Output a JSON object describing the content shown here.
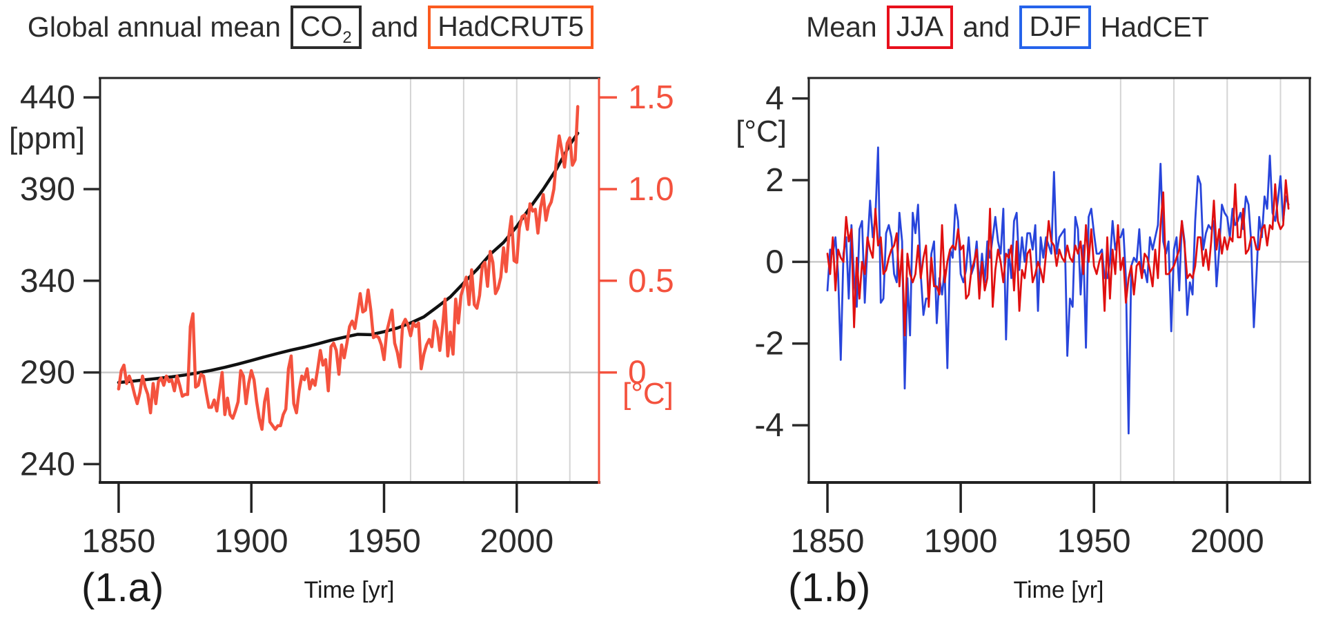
{
  "figure": {
    "titles": {
      "a": {
        "prefix": "Global annual mean",
        "box1": "CO",
        "box1_sub": "2",
        "mid": "and",
        "box2": "HadCRUT5"
      },
      "b": {
        "prefix": "Mean",
        "box1": "JJA",
        "mid": "and",
        "box2": "DJF",
        "suffix": "HadCET"
      }
    },
    "captions": {
      "a": "(1.a)",
      "b": "(1.b)",
      "xlabel": "Time [yr]"
    }
  },
  "colors": {
    "co2_line": "#111111",
    "co2_box": "#2b2b2b",
    "hadcrut_line": "#f4523e",
    "hadcrut_box": "#fb5a1f",
    "right_axis": "#f4523e",
    "jja_line": "#e01010",
    "jja_box": "#e8101c",
    "djf_line": "#2845db",
    "djf_box": "#2563eb",
    "grid": "#d4d4d4",
    "zero_line": "#c9c9c9",
    "axis": "#222222",
    "text": "#2b2b2b"
  },
  "chart_data": [
    {
      "id": "a",
      "type": "line",
      "title": "Global annual mean CO2 and HadCRUT5",
      "xlabel": "Time [yr]",
      "x_range": [
        1843,
        2031
      ],
      "x_ticks": [
        1850,
        1900,
        1950,
        2000
      ],
      "x_tick_labels": [
        "1850",
        "1900",
        "1950",
        "2000"
      ],
      "grid_years": [
        1960,
        1980,
        2000,
        2020
      ],
      "zero_axis": "right",
      "zero_value": 0,
      "axes": {
        "left": {
          "unit": "[ppm]",
          "ticks": [
            240,
            290,
            340,
            390,
            440
          ],
          "tick_labels": [
            "240",
            "290",
            "340",
            "390",
            "440"
          ],
          "range": [
            230,
            450.6
          ],
          "color": "#2b2b2b"
        },
        "right": {
          "unit": "[°C]",
          "ticks": [
            0,
            0.5,
            1.0,
            1.5
          ],
          "tick_labels": [
            "0",
            "0.5",
            "1.0",
            "1.5"
          ],
          "range": [
            -0.6,
            1.606
          ],
          "color": "#f4523e"
        }
      },
      "series": [
        {
          "name": "CO2",
          "legend": "CO2",
          "axis": "left",
          "color": "#111111",
          "width": 4.5,
          "points": [
            [
              1850,
              284.5
            ],
            [
              1855,
              285.2
            ],
            [
              1860,
              286.0
            ],
            [
              1865,
              286.8
            ],
            [
              1870,
              287.6
            ],
            [
              1875,
              288.6
            ],
            [
              1880,
              289.8
            ],
            [
              1885,
              291.2
            ],
            [
              1890,
              292.8
            ],
            [
              1895,
              294.6
            ],
            [
              1900,
              296.5
            ],
            [
              1905,
              298.5
            ],
            [
              1910,
              300.4
            ],
            [
              1915,
              302.2
            ],
            [
              1920,
              303.8
            ],
            [
              1925,
              305.6
            ],
            [
              1930,
              307.6
            ],
            [
              1935,
              309.2
            ],
            [
              1940,
              310.8
            ],
            [
              1945,
              310.6
            ],
            [
              1950,
              312.2
            ],
            [
              1955,
              314.2
            ],
            [
              1960,
              317.0
            ],
            [
              1965,
              320.3
            ],
            [
              1970,
              325.7
            ],
            [
              1975,
              331.2
            ],
            [
              1980,
              338.8
            ],
            [
              1985,
              346.1
            ],
            [
              1990,
              354.4
            ],
            [
              1995,
              360.9
            ],
            [
              2000,
              369.6
            ],
            [
              2005,
              379.9
            ],
            [
              2010,
              389.9
            ],
            [
              2015,
              401.0
            ],
            [
              2020,
              414.2
            ],
            [
              2023,
              420.5
            ]
          ]
        },
        {
          "name": "HadCRUT5",
          "legend": "HadCRUT5",
          "axis": "right",
          "color": "#f4523e",
          "width": 4.5,
          "start_year": 1850,
          "values": [
            -0.09,
            0.01,
            0.04,
            -0.06,
            -0.02,
            -0.06,
            -0.12,
            -0.17,
            -0.11,
            -0.02,
            -0.08,
            -0.12,
            -0.22,
            -0.06,
            -0.17,
            -0.05,
            -0.03,
            -0.07,
            -0.02,
            -0.05,
            -0.04,
            -0.1,
            -0.02,
            -0.07,
            -0.13,
            -0.12,
            -0.12,
            0.25,
            0.32,
            -0.08,
            -0.07,
            -0.01,
            -0.02,
            -0.11,
            -0.19,
            -0.19,
            -0.15,
            -0.21,
            -0.1,
            0.0,
            -0.23,
            -0.14,
            -0.23,
            -0.25,
            -0.21,
            -0.16,
            0.01,
            -0.02,
            -0.17,
            -0.06,
            0.01,
            -0.04,
            -0.16,
            -0.25,
            -0.31,
            -0.16,
            -0.09,
            -0.27,
            -0.29,
            -0.31,
            -0.29,
            -0.29,
            -0.23,
            -0.2,
            0.02,
            0.09,
            -0.17,
            -0.22,
            -0.1,
            -0.02,
            -0.04,
            0.02,
            -0.09,
            -0.04,
            -0.07,
            0.02,
            0.12,
            0.04,
            0.07,
            -0.1,
            0.14,
            0.16,
            0.12,
            -0.01,
            0.15,
            0.08,
            0.16,
            0.25,
            0.28,
            0.24,
            0.33,
            0.43,
            0.33,
            0.34,
            0.45,
            0.34,
            0.19,
            0.2,
            0.19,
            0.15,
            0.07,
            0.22,
            0.28,
            0.34,
            0.16,
            0.11,
            0.03,
            0.26,
            0.29,
            0.26,
            0.2,
            0.27,
            0.25,
            0.27,
            0.02,
            0.1,
            0.15,
            0.18,
            0.14,
            0.28,
            0.24,
            0.12,
            0.24,
            0.4,
            0.09,
            0.22,
            0.1,
            0.4,
            0.27,
            0.42,
            0.47,
            0.52,
            0.37,
            0.56,
            0.37,
            0.35,
            0.42,
            0.58,
            0.6,
            0.47,
            0.66,
            0.6,
            0.43,
            0.46,
            0.52,
            0.68,
            0.55,
            0.74,
            0.85,
            0.61,
            0.6,
            0.79,
            0.85,
            0.86,
            0.78,
            0.92,
            0.88,
            0.89,
            0.76,
            0.9,
            0.97,
            0.83,
            0.9,
            0.93,
            1.0,
            1.17,
            1.29,
            1.21,
            1.12,
            1.25,
            1.28,
            1.13,
            1.16,
            1.45
          ]
        }
      ]
    },
    {
      "id": "b",
      "type": "line",
      "title": "Mean JJA and DJF HadCET",
      "xlabel": "Time [yr]",
      "x_range": [
        1843,
        2031
      ],
      "x_ticks": [
        1850,
        1900,
        1950,
        2000
      ],
      "x_tick_labels": [
        "1850",
        "1900",
        "1950",
        "2000"
      ],
      "grid_years": [
        1960,
        1980,
        2000,
        2020
      ],
      "zero_axis": "left",
      "zero_value": 0,
      "axes": {
        "left": {
          "unit": "[°C]",
          "ticks": [
            -4,
            -2,
            0,
            2,
            4
          ],
          "tick_labels": [
            "-4",
            "-2",
            "0",
            "2",
            "4"
          ],
          "range": [
            -5.4,
            4.5
          ],
          "color": "#2b2b2b"
        }
      },
      "series": [
        {
          "name": "DJF",
          "legend": "DJF",
          "axis": "left",
          "color": "#2845db",
          "width": 2.8,
          "start_year": 1850,
          "values": [
            -0.7,
            0.3,
            0.2,
            0.6,
            -0.3,
            -2.4,
            0.2,
            0.6,
            -0.9,
            0.9,
            -0.4,
            -1.1,
            0.8,
            1.0,
            -1.0,
            0.4,
            1.5,
            0.6,
            1.1,
            2.8,
            -1.0,
            -0.9,
            0.7,
            0.9,
            0.6,
            -0.3,
            -0.5,
            1.2,
            0.5,
            -3.1,
            -0.4,
            -1.8,
            1.2,
            0.7,
            1.4,
            -0.3,
            -1.3,
            -0.9,
            -0.9,
            0.2,
            0.5,
            -1.5,
            -0.4,
            -0.8,
            -0.2,
            -2.6,
            0.3,
            0.1,
            1.4,
            1.0,
            -0.3,
            -0.5,
            -0.2,
            0.6,
            -0.3,
            -0.1,
            0.5,
            -0.6,
            0.2,
            -0.5,
            0.5,
            0.1,
            0.6,
            1.1,
            0.5,
            0.2,
            1.3,
            -1.9,
            0.3,
            -0.4,
            1.0,
            1.2,
            -0.2,
            0.6,
            0.0,
            0.7,
            0.7,
            0.3,
            0.9,
            -1.2,
            0.6,
            0.1,
            0.6,
            0.4,
            0.2,
            2.2,
            0.2,
            0.6,
            0.7,
            0.8,
            -2.3,
            -0.9,
            -1.1,
            1.1,
            0.8,
            -0.8,
            0.4,
            -2.1,
            1.1,
            1.3,
            0.7,
            0.2,
            0.2,
            0.3,
            -0.4,
            -0.4,
            0.0,
            1.0,
            0.3,
            0.6,
            0.6,
            0.8,
            -0.4,
            -4.2,
            -0.1,
            0.1,
            0.0,
            0.8,
            -0.3,
            -0.2,
            -0.5,
            0.6,
            0.3,
            0.6,
            0.9,
            2.4,
            0.5,
            0.2,
            0.5,
            -1.7,
            0.3,
            0.6,
            -0.7,
            1.0,
            0.5,
            -1.3,
            -0.5,
            -0.8,
            1.0,
            2.1,
            1.9,
            0.3,
            0.7,
            0.9,
            0.8,
            1.0,
            -0.6,
            0.3,
            1.4,
            1.2,
            1.1,
            0.6,
            1.3,
            0.9,
            1.0,
            1.2,
            0.8,
            1.6,
            1.4,
            0.5,
            -1.6,
            -0.3,
            1.1,
            0.6,
            1.6,
            1.3,
            2.6,
            1.2,
            1.0,
            1.5,
            2.1,
            1.0,
            1.6,
            1.4
          ]
        },
        {
          "name": "JJA",
          "legend": "JJA",
          "axis": "left",
          "color": "#e01010",
          "width": 2.8,
          "start_year": 1850,
          "values": [
            0.2,
            -0.3,
            0.6,
            -0.7,
            0.3,
            0.1,
            0.0,
            1.1,
            0.5,
            0.8,
            -1.6,
            0.1,
            -0.9,
            0.0,
            -0.3,
            0.6,
            0.3,
            0.1,
            1.3,
            0.4,
            0.6,
            -0.3,
            -0.2,
            0.1,
            0.3,
            0.4,
            0.7,
            -0.6,
            0.3,
            -1.8,
            0.2,
            -0.3,
            -0.5,
            -0.3,
            0.4,
            -0.4,
            0.1,
            0.4,
            -1.1,
            0.1,
            -0.6,
            -0.6,
            -0.8,
            0.9,
            -0.5,
            0.0,
            0.3,
            0.4,
            0.3,
            0.8,
            0.3,
            0.4,
            -0.9,
            -0.8,
            -0.2,
            0.0,
            0.3,
            -0.9,
            0.0,
            -0.7,
            -0.4,
            1.3,
            -1.1,
            -0.2,
            0.3,
            0.0,
            -0.5,
            0.2,
            0.1,
            0.4,
            -0.7,
            0.5,
            -1.2,
            -0.2,
            -0.4,
            0.2,
            0.3,
            -0.5,
            -0.3,
            0.0,
            -0.2,
            -0.5,
            0.2,
            1.0,
            0.5,
            0.4,
            -0.1,
            0.3,
            0.1,
            0.0,
            0.4,
            0.1,
            0.0,
            0.4,
            0.2,
            0.5,
            -0.3,
            0.9,
            0.0,
            0.8,
            -0.1,
            -0.3,
            0.0,
            0.2,
            -1.2,
            0.6,
            -0.9,
            0.3,
            -0.3,
            0.9,
            -0.2,
            0.1,
            -1.0,
            -0.4,
            -0.1,
            -0.8,
            -0.1,
            0.0,
            -0.4,
            0.2,
            0.1,
            -0.2,
            -0.6,
            0.3,
            -0.4,
            0.9,
            1.7,
            -0.3,
            -0.3,
            -0.2,
            -0.1,
            0.1,
            0.3,
            1.0,
            0.4,
            -0.4,
            -0.3,
            -0.4,
            -0.1,
            0.6,
            0.6,
            -0.1,
            0.3,
            -0.2,
            0.5,
            1.5,
            0.3,
            0.8,
            0.2,
            0.6,
            0.3,
            0.6,
            0.5,
            1.9,
            0.6,
            0.6,
            1.3,
            0.2,
            0.3,
            0.6,
            0.6,
            0.3,
            0.3,
            0.8,
            0.9,
            0.4,
            0.9,
            0.8,
            1.9,
            1.0,
            0.8,
            0.9,
            2.0,
            1.3
          ]
        }
      ]
    }
  ]
}
